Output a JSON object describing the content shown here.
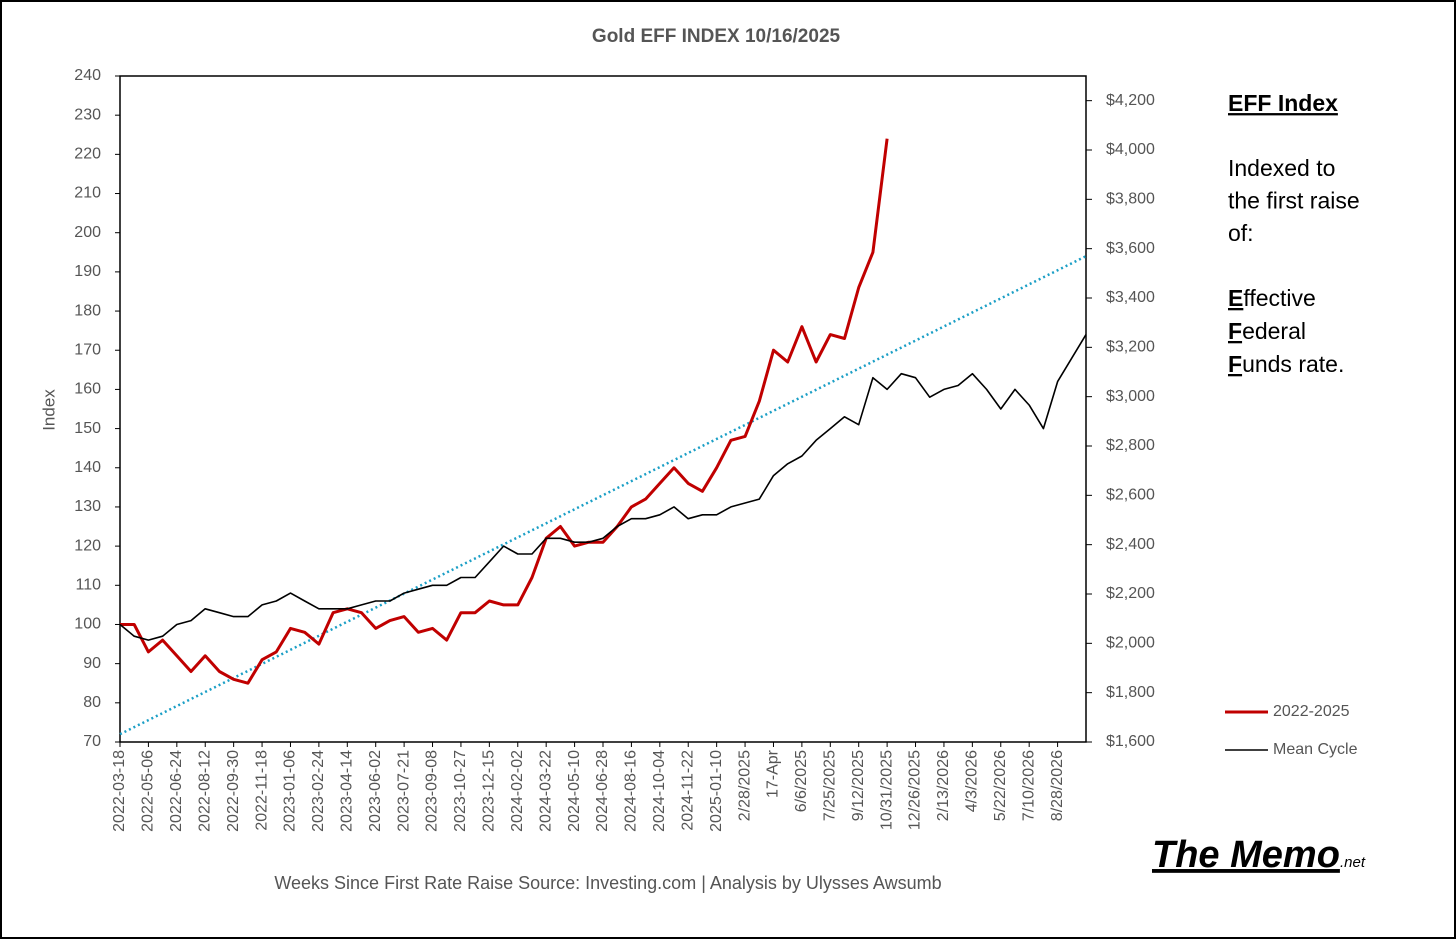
{
  "chart_data": {
    "type": "line",
    "title": "Gold EFF  INDEX 10/16/2025",
    "x_label": "Weeks Since First Rate Raise   Source: Investing.com | Analysis by Ulysses Awsumb",
    "y_label": "Index",
    "categories": [
      "2022-03-18",
      null,
      "2022-05-06",
      null,
      "2022-06-24",
      null,
      "2022-08-12",
      null,
      "2022-09-30",
      null,
      "2022-11-18",
      null,
      "2023-01-06",
      null,
      "2023-02-24",
      null,
      "2023-04-14",
      null,
      "2023-06-02",
      null,
      "2023-07-21",
      null,
      "2023-09-08",
      null,
      "2023-10-27",
      null,
      "2023-12-15",
      null,
      "2024-02-02",
      null,
      "2024-03-22",
      null,
      "2024-05-10",
      null,
      "2024-06-28",
      null,
      "2024-08-16",
      null,
      "2024-10-04",
      null,
      "2024-11-22",
      null,
      "2025-01-10",
      null,
      "2/28/2025",
      null,
      "17-Apr",
      null,
      "6/6/2025",
      null,
      "7/25/2025",
      null,
      "9/12/2025",
      null,
      "10/31/2025",
      null,
      "12/26/2025",
      null,
      "2/13/2026",
      null,
      "4/3/2026",
      null,
      "5/22/2026",
      null,
      "7/10/2026",
      null,
      "8/28/2026",
      null,
      null
    ],
    "series": [
      {
        "name": "2022-2025",
        "color": "#c00000",
        "values": [
          100,
          100,
          93,
          96,
          92,
          88,
          92,
          88,
          86,
          85,
          91,
          93,
          99,
          98,
          95,
          103,
          104,
          103,
          99,
          101,
          102,
          98,
          99,
          96,
          103,
          103,
          106,
          105,
          105,
          112,
          122,
          125,
          120,
          121,
          121,
          125,
          130,
          132,
          136,
          140,
          136,
          134,
          140,
          147,
          148,
          157,
          170,
          167,
          176,
          167,
          174,
          173,
          186,
          195,
          224,
          null,
          null,
          null,
          null,
          null,
          null,
          null,
          null,
          null,
          null,
          null,
          null,
          null,
          null
        ]
      },
      {
        "name": "Mean Cycle",
        "color": "#000000",
        "values": [
          100,
          97,
          96,
          97,
          100,
          101,
          104,
          103,
          102,
          102,
          105,
          106,
          108,
          106,
          104,
          104,
          104,
          105,
          106,
          106,
          108,
          109,
          110,
          110,
          112,
          112,
          116,
          120,
          118,
          118,
          122,
          122,
          121,
          121,
          122,
          125,
          127,
          127,
          128,
          130,
          127,
          128,
          128,
          130,
          131,
          132,
          138,
          141,
          143,
          147,
          150,
          153,
          151,
          163,
          160,
          164,
          163,
          158,
          160,
          161,
          164,
          160,
          155,
          160,
          156,
          150,
          162,
          168,
          174
        ]
      }
    ],
    "trendline": {
      "color": "#1b9fc6",
      "values": [
        72,
        194
      ]
    },
    "ylim": [
      70,
      240
    ],
    "yticks": [
      70,
      80,
      90,
      100,
      110,
      120,
      130,
      140,
      150,
      160,
      170,
      180,
      190,
      200,
      210,
      220,
      230,
      240
    ],
    "y2lim": [
      1600,
      4300
    ],
    "y2ticks": [
      {
        "value": 1600,
        "label": "$1,600"
      },
      {
        "value": 1800,
        "label": "$1,800"
      },
      {
        "value": 2000,
        "label": "$2,000"
      },
      {
        "value": 2200,
        "label": "$2,200"
      },
      {
        "value": 2400,
        "label": "$2,400"
      },
      {
        "value": 2600,
        "label": "$2,600"
      },
      {
        "value": 2800,
        "label": "$2,800"
      },
      {
        "value": 3000,
        "label": "$3,000"
      },
      {
        "value": 3200,
        "label": "$3,200"
      },
      {
        "value": 3400,
        "label": "$3,400"
      },
      {
        "value": 3600,
        "label": "$3,600"
      },
      {
        "value": 3800,
        "label": "$3,800"
      },
      {
        "value": 4000,
        "label": "$4,000"
      },
      {
        "value": 4200,
        "label": "$4,200"
      }
    ],
    "legend": "right",
    "panel": {
      "heading": "EFF Index",
      "lines": [
        "Indexed to",
        "the first raise",
        "of:"
      ],
      "terms": [
        {
          "initial": "E",
          "rest": "ffective"
        },
        {
          "initial": "F",
          "rest": "ederal"
        },
        {
          "initial": "F",
          "rest": "unds rate."
        }
      ]
    },
    "logo": {
      "name": "The Memo",
      "suffix": ".net"
    }
  }
}
